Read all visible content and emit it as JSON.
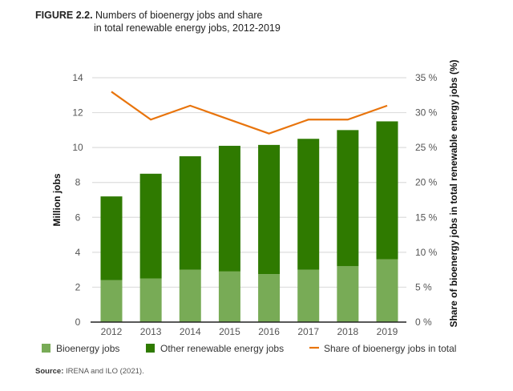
{
  "title_prefix": "FIGURE 2.2.",
  "title_line1": "Numbers of bioenergy jobs and share",
  "title_line2": "in total renewable energy jobs, 2012-2019",
  "source_label": "Source:",
  "source_text": "IRENA and ILO (2021).",
  "chart_data": {
    "type": "bar",
    "stacked": true,
    "categories": [
      "2012",
      "2013",
      "2014",
      "2015",
      "2016",
      "2017",
      "2018",
      "2019"
    ],
    "series": [
      {
        "name": "Bioenergy jobs",
        "type": "bar",
        "axis": "left",
        "color": "#78ab56",
        "values": [
          2.4,
          2.5,
          3.0,
          2.9,
          2.75,
          3.0,
          3.2,
          3.6
        ]
      },
      {
        "name": "Other renewable energy jobs",
        "type": "bar",
        "axis": "left",
        "color": "#2f7a00",
        "values": [
          4.8,
          6.0,
          6.5,
          7.2,
          7.4,
          7.5,
          7.8,
          7.9
        ]
      },
      {
        "name": "Share of bioenergy jobs in total",
        "type": "line",
        "axis": "right",
        "color": "#e8740c",
        "values": [
          33,
          29,
          31,
          29,
          27,
          29,
          29,
          31
        ]
      }
    ],
    "ylabel": "Million jobs",
    "y2label": "Share of bioenergy jobs in total renewable energy jobs (%)",
    "ylim": [
      0,
      14
    ],
    "y2lim": [
      0,
      35
    ],
    "yticks": [
      "0",
      "2",
      "4",
      "6",
      "8",
      "10",
      "12",
      "14"
    ],
    "y2ticks": [
      "0 %",
      "5 %",
      "10 %",
      "15 %",
      "20 %",
      "25 %",
      "30 %",
      "35 %"
    ],
    "grid": true,
    "legend": "bottom"
  }
}
